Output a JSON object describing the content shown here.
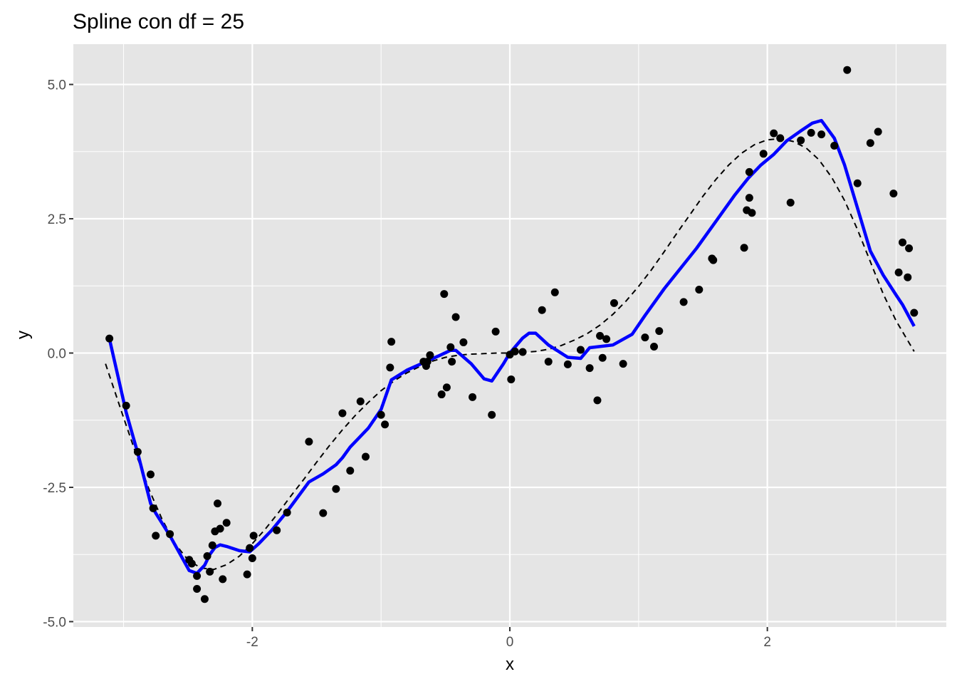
{
  "chart_data": {
    "type": "scatter",
    "title": "Spline con df =  25",
    "xlabel": "x",
    "ylabel": "y",
    "xlim": [
      -3.39,
      3.39
    ],
    "ylim": [
      -5.1,
      5.75
    ],
    "x_ticks": [
      -2,
      0,
      2
    ],
    "x_tick_labels": [
      "-2",
      "0",
      "2"
    ],
    "y_ticks": [
      -5.0,
      -2.5,
      0.0,
      2.5,
      5.0
    ],
    "y_tick_labels": [
      "-5.0",
      "-2.5",
      "0.0",
      "2.5",
      "5.0"
    ],
    "grid": true,
    "colors": {
      "panel": "#e5e5e5",
      "grid": "#ffffff",
      "points": "#000000",
      "spline": "#0000ff",
      "true_curve": "#000000"
    },
    "series": [
      {
        "kind": "points",
        "x": [
          -3.11,
          -2.98,
          -2.89,
          -2.79,
          -2.77,
          -2.75,
          -2.64,
          -2.49,
          -2.47,
          -2.43,
          -2.43,
          -2.37,
          -2.35,
          -2.33,
          -2.31,
          -2.29,
          -2.27,
          -2.25,
          -2.23,
          -2.2,
          -2.04,
          -2.02,
          -2.0,
          -1.99,
          -1.81,
          -1.73,
          -1.56,
          -1.45,
          -1.35,
          -1.3,
          -1.24,
          -1.16,
          -1.12,
          -1.0,
          -0.97,
          -0.93,
          -0.92,
          -0.67,
          -0.65,
          -0.64,
          -0.62,
          -0.53,
          -0.51,
          -0.49,
          -0.46,
          -0.45,
          -0.42,
          -0.36,
          -0.29,
          -0.14,
          -0.11,
          0.0,
          0.01,
          0.04,
          0.1,
          0.25,
          0.3,
          0.35,
          0.45,
          0.55,
          0.62,
          0.68,
          0.7,
          0.72,
          0.75,
          0.81,
          0.88,
          1.05,
          1.12,
          1.16,
          1.35,
          1.47,
          1.57,
          1.58,
          1.82,
          1.84,
          1.86,
          1.86,
          1.88,
          1.97,
          2.05,
          2.1,
          2.18,
          2.26,
          2.34,
          2.42,
          2.52,
          2.62,
          2.7,
          2.8,
          2.86,
          2.98,
          3.02,
          3.05,
          3.09,
          3.1,
          3.14
        ],
        "y": [
          0.27,
          -0.98,
          -1.84,
          -2.26,
          -2.89,
          -3.4,
          -3.37,
          -3.85,
          -3.92,
          -4.15,
          -4.39,
          -4.58,
          -3.78,
          -4.07,
          -3.58,
          -3.32,
          -2.8,
          -3.27,
          -4.21,
          -3.16,
          -4.12,
          -3.63,
          -3.82,
          -3.4,
          -3.3,
          -2.97,
          -1.65,
          -2.98,
          -2.53,
          -1.12,
          -2.19,
          -0.9,
          -1.93,
          -1.15,
          -1.33,
          -0.27,
          0.21,
          -0.16,
          -0.24,
          -0.16,
          -0.04,
          -0.77,
          1.1,
          -0.64,
          0.11,
          -0.16,
          0.67,
          0.2,
          -0.82,
          -1.15,
          0.4,
          -0.03,
          -0.49,
          0.03,
          0.02,
          0.8,
          -0.16,
          1.13,
          -0.21,
          0.06,
          -0.28,
          -0.88,
          0.32,
          -0.09,
          0.26,
          0.93,
          -0.2,
          0.29,
          0.12,
          0.41,
          0.95,
          1.18,
          1.76,
          1.73,
          1.96,
          2.66,
          3.37,
          2.89,
          2.61,
          3.71,
          4.09,
          4.0,
          2.8,
          3.96,
          4.1,
          4.07,
          3.86,
          5.27,
          3.16,
          3.91,
          4.12,
          2.97,
          1.5,
          2.06,
          1.41,
          1.95,
          0.75
        ]
      },
      {
        "kind": "line",
        "style": "dashed",
        "x": [
          -3.14,
          -3.0,
          -2.9,
          -2.8,
          -2.7,
          -2.6,
          -2.5,
          -2.4,
          -2.3,
          -2.2,
          -2.1,
          -2.0,
          -1.9,
          -1.8,
          -1.7,
          -1.6,
          -1.5,
          -1.4,
          -1.3,
          -1.2,
          -1.1,
          -1.0,
          -0.9,
          -0.8,
          -0.7,
          -0.6,
          -0.5,
          -0.4,
          -0.3,
          -0.2,
          -0.1,
          0.0,
          0.1,
          0.2,
          0.3,
          0.4,
          0.5,
          0.6,
          0.7,
          0.8,
          0.9,
          1.0,
          1.1,
          1.2,
          1.3,
          1.4,
          1.5,
          1.6,
          1.7,
          1.8,
          1.9,
          2.0,
          2.1,
          2.2,
          2.3,
          2.4,
          2.5,
          2.6,
          2.7,
          2.8,
          2.9,
          3.0,
          3.14
        ],
        "y": [
          -0.2,
          -1.2,
          -1.9,
          -2.55,
          -3.1,
          -3.55,
          -3.85,
          -4.0,
          -4.03,
          -3.94,
          -3.78,
          -3.55,
          -3.28,
          -2.98,
          -2.66,
          -2.35,
          -2.03,
          -1.72,
          -1.43,
          -1.16,
          -0.92,
          -0.7,
          -0.52,
          -0.37,
          -0.25,
          -0.15,
          -0.08,
          -0.04,
          -0.02,
          -0.01,
          0.0,
          0.0,
          0.01,
          0.03,
          0.07,
          0.14,
          0.24,
          0.36,
          0.52,
          0.72,
          0.96,
          1.24,
          1.55,
          1.89,
          2.24,
          2.58,
          2.92,
          3.23,
          3.5,
          3.72,
          3.88,
          3.97,
          3.99,
          3.94,
          3.82,
          3.6,
          3.27,
          2.84,
          2.3,
          1.7,
          1.1,
          0.6,
          0.03
        ]
      },
      {
        "kind": "line",
        "style": "solid",
        "x": [
          -3.11,
          -2.98,
          -2.89,
          -2.79,
          -2.75,
          -2.64,
          -2.49,
          -2.43,
          -2.37,
          -2.33,
          -2.29,
          -2.25,
          -2.2,
          -2.1,
          -2.02,
          -1.95,
          -1.85,
          -1.73,
          -1.56,
          -1.45,
          -1.35,
          -1.3,
          -1.24,
          -1.16,
          -1.1,
          -1.0,
          -0.92,
          -0.8,
          -0.67,
          -0.55,
          -0.46,
          -0.42,
          -0.3,
          -0.2,
          -0.14,
          -0.05,
          0.0,
          0.1,
          0.15,
          0.2,
          0.3,
          0.45,
          0.55,
          0.62,
          0.8,
          0.95,
          1.05,
          1.2,
          1.35,
          1.45,
          1.6,
          1.75,
          1.85,
          1.95,
          2.05,
          2.15,
          2.25,
          2.35,
          2.42,
          2.52,
          2.6,
          2.7,
          2.8,
          2.9,
          3.0,
          3.05,
          3.14
        ],
        "y": [
          0.27,
          -1.1,
          -1.86,
          -2.8,
          -2.98,
          -3.4,
          -4.05,
          -4.1,
          -3.95,
          -3.75,
          -3.62,
          -3.57,
          -3.6,
          -3.68,
          -3.7,
          -3.55,
          -3.3,
          -2.95,
          -2.4,
          -2.25,
          -2.08,
          -1.95,
          -1.75,
          -1.55,
          -1.4,
          -1.05,
          -0.5,
          -0.32,
          -0.18,
          -0.05,
          0.05,
          0.05,
          -0.2,
          -0.48,
          -0.52,
          -0.2,
          0.0,
          0.28,
          0.37,
          0.37,
          0.15,
          -0.08,
          -0.1,
          0.1,
          0.15,
          0.35,
          0.7,
          1.2,
          1.65,
          1.95,
          2.45,
          2.95,
          3.25,
          3.5,
          3.7,
          3.95,
          4.12,
          4.28,
          4.33,
          4.0,
          3.5,
          2.7,
          1.9,
          1.45,
          1.08,
          0.9,
          0.5
        ]
      }
    ]
  }
}
